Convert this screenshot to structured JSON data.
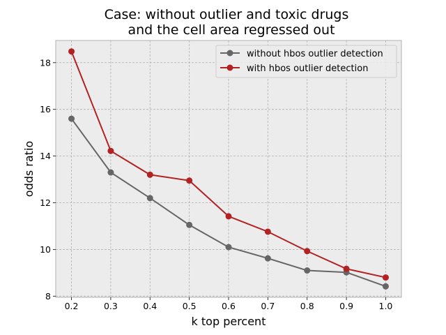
{
  "chart_data": {
    "type": "line",
    "title": [
      "Case: without outlier and toxic drugs",
      "and the cell area regressed out"
    ],
    "xlabel": "k top percent",
    "ylabel": "odds ratio",
    "x": [
      0.2,
      0.3,
      0.4,
      0.5,
      0.6,
      0.7,
      0.8,
      0.9,
      1.0
    ],
    "xticks": [
      "0.2",
      "0.3",
      "0.4",
      "0.5",
      "0.6",
      "0.7",
      "0.8",
      "0.9",
      "1.0"
    ],
    "yticks": [
      "8",
      "10",
      "12",
      "14",
      "16",
      "18"
    ],
    "xlim": [
      0.16,
      1.04
    ],
    "ylim": [
      7.95,
      18.95
    ],
    "grid": true,
    "legend_position": "top-right",
    "series": [
      {
        "name": "without hbos outlier detection",
        "color": "#666666",
        "values": [
          15.6,
          13.3,
          12.2,
          11.05,
          10.1,
          9.62,
          9.1,
          9.02,
          8.42
        ]
      },
      {
        "name": "with hbos outlier detection",
        "color": "#b22222",
        "values": [
          18.48,
          14.22,
          13.2,
          12.95,
          11.42,
          10.76,
          9.93,
          9.17,
          8.8
        ]
      }
    ]
  }
}
